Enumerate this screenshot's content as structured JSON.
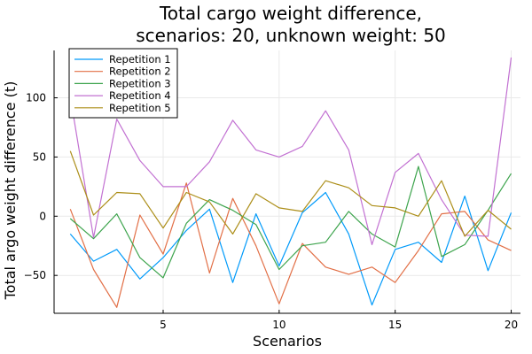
{
  "chart_data": {
    "type": "line",
    "title": "Total cargo weight difference,",
    "subtitle": "scenarios: 20, unknown weight: 50",
    "xlabel": "Scenarios",
    "ylabel": "Total argo weight difference (t)",
    "xlim": [
      0.3,
      20.4
    ],
    "ylim": [
      -82,
      140
    ],
    "xticks": [
      5,
      10,
      15,
      20
    ],
    "yticks": [
      -50,
      0,
      50,
      100
    ],
    "grid": true,
    "legend_position": "top-left",
    "x": [
      1,
      2,
      3,
      4,
      5,
      6,
      7,
      8,
      9,
      10,
      11,
      12,
      13,
      14,
      15,
      16,
      17,
      18,
      19,
      20
    ],
    "series": [
      {
        "name": "Repetition 1",
        "color": "#009AFA",
        "values": [
          -15,
          -38,
          -28,
          -53,
          -35,
          -12,
          6,
          -56,
          2,
          -42,
          3,
          20,
          -15,
          -75,
          -28,
          -22,
          -39,
          17,
          -46,
          3
        ]
      },
      {
        "name": "Repetition 2",
        "color": "#E26F46",
        "values": [
          6,
          -45,
          -77,
          1,
          -32,
          28,
          -48,
          15,
          -25,
          -74,
          -23,
          -43,
          -49,
          -43,
          -56,
          -29,
          2,
          4,
          -20,
          -29
        ]
      },
      {
        "name": "Repetition 3",
        "color": "#3DA44D",
        "values": [
          -2,
          -19,
          2,
          -35,
          -52,
          -6,
          14,
          5,
          -7,
          -45,
          -25,
          -22,
          4,
          -15,
          -26,
          42,
          -34,
          -24,
          5,
          36
        ]
      },
      {
        "name": "Repetition 4",
        "color": "#C271D2",
        "values": [
          101,
          -18,
          82,
          47,
          25,
          25,
          46,
          81,
          56,
          50,
          59,
          89,
          56,
          -24,
          37,
          53,
          14,
          -16,
          -17,
          134
        ]
      },
      {
        "name": "Repetition 5",
        "color": "#AC8E18",
        "values": [
          55,
          1,
          20,
          19,
          -10,
          20,
          12,
          -15,
          19,
          7,
          4,
          30,
          24,
          9,
          7,
          0,
          30,
          -17,
          5,
          -11
        ]
      }
    ]
  }
}
